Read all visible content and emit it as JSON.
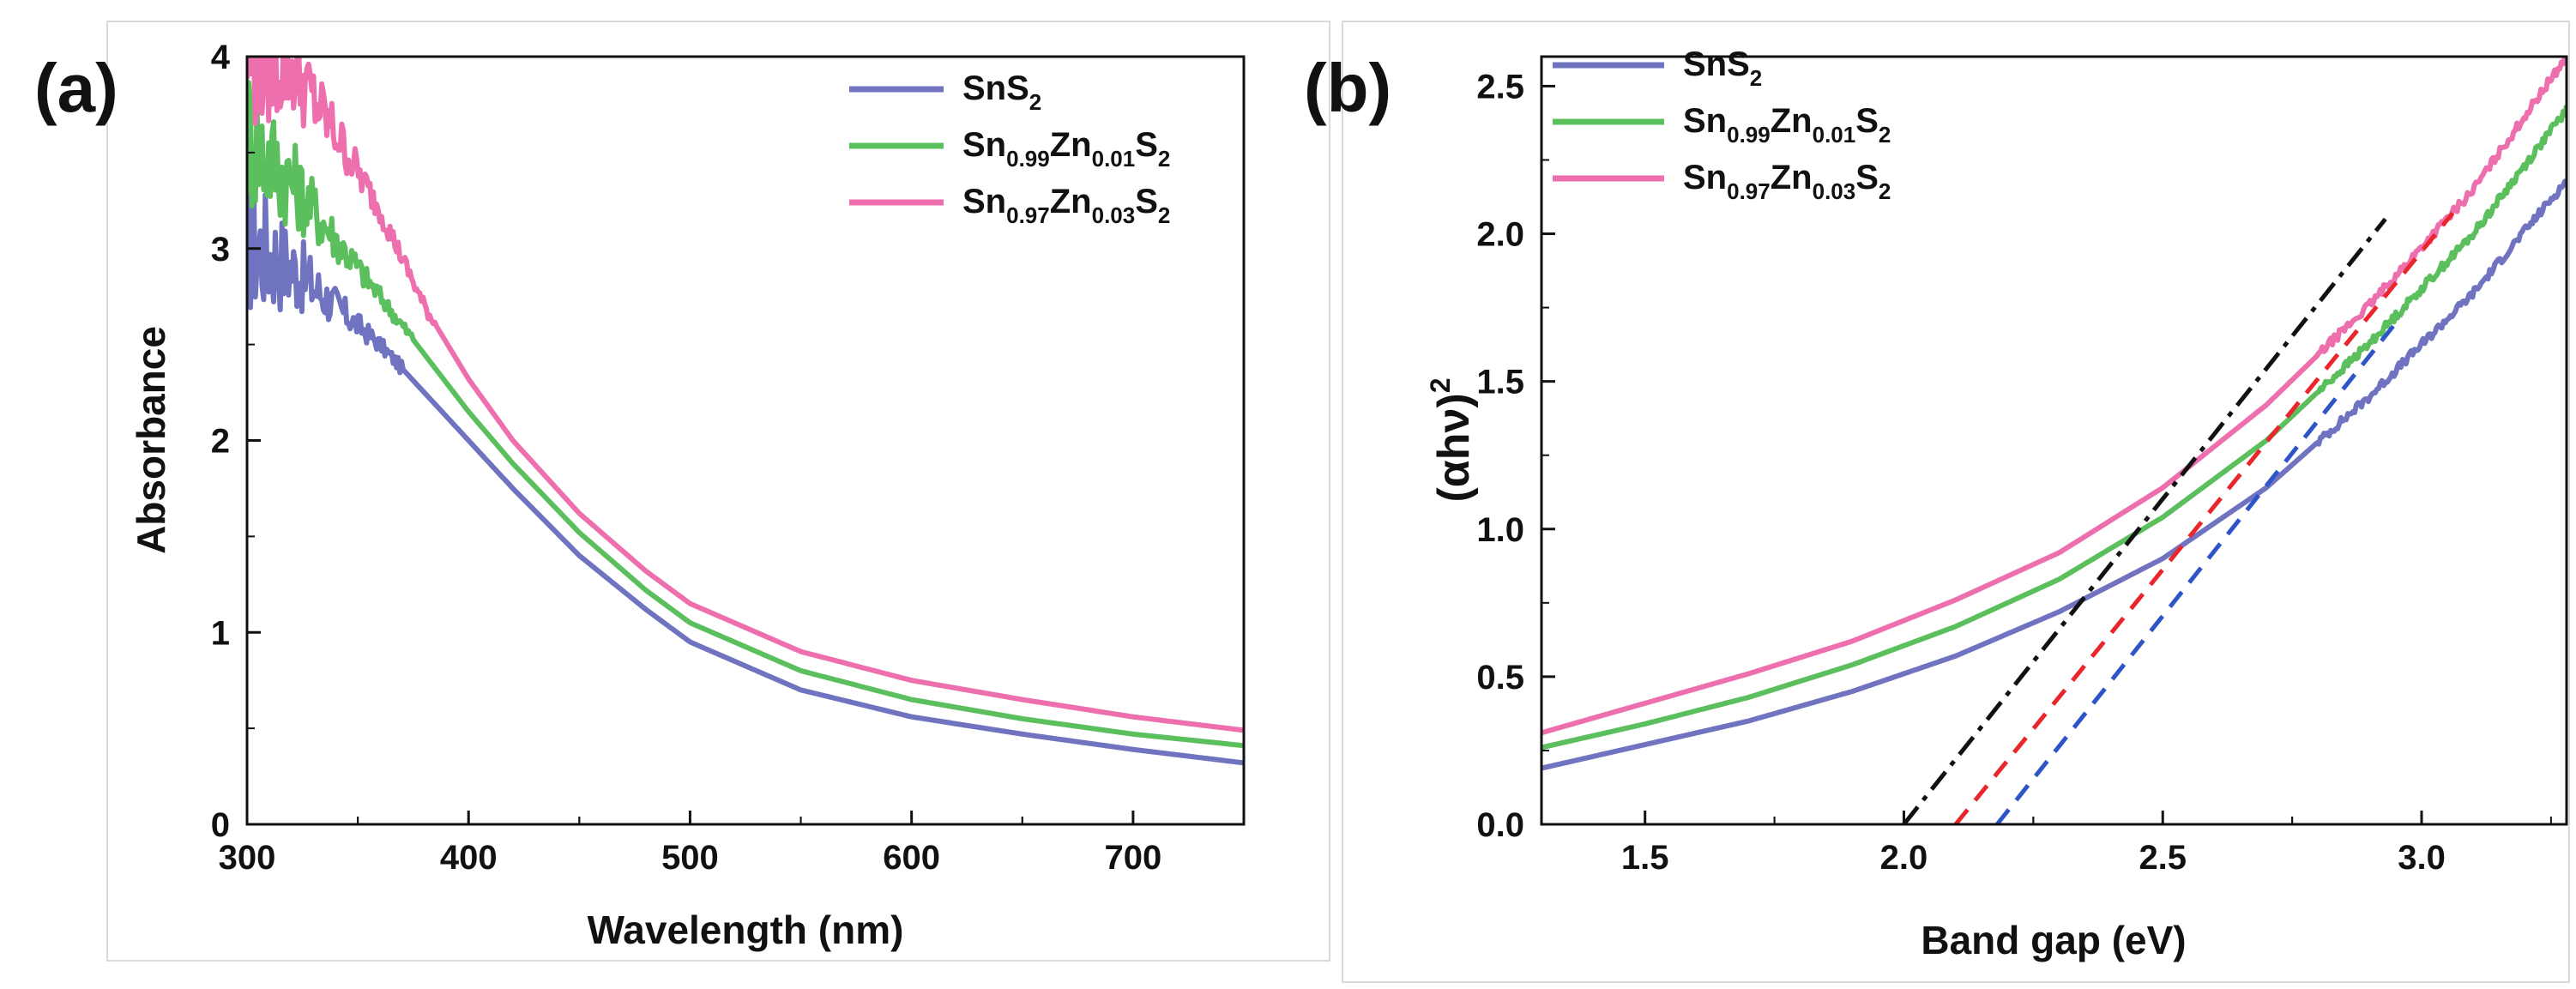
{
  "chart_data": [
    {
      "panel": "(a)",
      "type": "line",
      "title": "",
      "xlabel": "Wavelength (nm)",
      "ylabel": "Absorbance",
      "xlim": [
        300,
        750
      ],
      "ylim": [
        0,
        4
      ],
      "x_ticks": [
        300,
        400,
        500,
        600,
        700
      ],
      "y_ticks": [
        0,
        1,
        2,
        3,
        4
      ],
      "legend_position": "top-right",
      "series": [
        {
          "name": "SnS2",
          "label_parts": [
            [
              "SnS",
              "n"
            ],
            [
              "2",
              "sub"
            ]
          ],
          "color": "#6f73c0",
          "noise_below": 370,
          "x": [
            300,
            320,
            340,
            360,
            380,
            400,
            420,
            450,
            480,
            500,
            550,
            600,
            650,
            700,
            750
          ],
          "y": [
            3.05,
            2.9,
            2.7,
            2.5,
            2.25,
            2.0,
            1.75,
            1.4,
            1.12,
            0.95,
            0.7,
            0.56,
            0.47,
            0.39,
            0.32
          ]
        },
        {
          "name": "Sn0.99Zn0.01S2",
          "label_parts": [
            [
              "Sn",
              "n"
            ],
            [
              "0.99",
              "sub"
            ],
            [
              "Zn",
              "n"
            ],
            [
              "0.01",
              "sub"
            ],
            [
              "S",
              "n"
            ],
            [
              "2",
              "sub"
            ]
          ],
          "color": "#5cbf5e",
          "noise_below": 375,
          "x": [
            300,
            320,
            340,
            360,
            380,
            400,
            420,
            450,
            480,
            500,
            550,
            600,
            650,
            700,
            750
          ],
          "y": [
            3.6,
            3.35,
            3.05,
            2.75,
            2.45,
            2.15,
            1.88,
            1.52,
            1.22,
            1.05,
            0.8,
            0.65,
            0.55,
            0.47,
            0.41
          ]
        },
        {
          "name": "Sn0.97Zn0.03S2",
          "label_parts": [
            [
              "Sn",
              "n"
            ],
            [
              "0.97",
              "sub"
            ],
            [
              "Zn",
              "n"
            ],
            [
              "0.03",
              "sub"
            ],
            [
              "S",
              "n"
            ],
            [
              "2",
              "sub"
            ]
          ],
          "color": "#ee6fae",
          "noise_below": 385,
          "x": [
            300,
            320,
            340,
            360,
            380,
            400,
            420,
            450,
            480,
            500,
            550,
            600,
            650,
            700,
            750
          ],
          "y": [
            4.0,
            3.95,
            3.6,
            3.2,
            2.7,
            2.32,
            2.0,
            1.62,
            1.32,
            1.15,
            0.9,
            0.75,
            0.65,
            0.56,
            0.49
          ]
        }
      ]
    },
    {
      "panel": "(b)",
      "type": "line",
      "title": "",
      "xlabel": "Band gap (eV)",
      "ylabel": "(αhν)",
      "ylabel_superscript": "2",
      "xlim": [
        1.3,
        3.28
      ],
      "ylim": [
        0,
        2.6
      ],
      "x_ticks": [
        "1.5",
        "2.0",
        "2.5",
        "3.0"
      ],
      "y_ticks": [
        "0.0",
        "0.5",
        "1.0",
        "1.5",
        "2.0",
        "2.5"
      ],
      "legend_position": "top-left",
      "series": [
        {
          "name": "SnS2",
          "label_parts": [
            [
              "SnS",
              "n"
            ],
            [
              "2",
              "sub"
            ]
          ],
          "color": "#6f73c0",
          "x": [
            1.3,
            1.5,
            1.7,
            1.9,
            2.1,
            2.3,
            2.5,
            2.7,
            2.9,
            3.1,
            3.28
          ],
          "y": [
            0.19,
            0.27,
            0.35,
            0.45,
            0.57,
            0.72,
            0.9,
            1.14,
            1.45,
            1.8,
            2.18
          ]
        },
        {
          "name": "Sn0.99Zn0.01S2",
          "label_parts": [
            [
              "Sn",
              "n"
            ],
            [
              "0.99",
              "sub"
            ],
            [
              "Zn",
              "n"
            ],
            [
              "0.01",
              "sub"
            ],
            [
              "S",
              "n"
            ],
            [
              "2",
              "sub"
            ]
          ],
          "color": "#5cbf5e",
          "x": [
            1.3,
            1.5,
            1.7,
            1.9,
            2.1,
            2.3,
            2.5,
            2.7,
            2.9,
            3.1,
            3.28
          ],
          "y": [
            0.26,
            0.34,
            0.43,
            0.54,
            0.67,
            0.83,
            1.04,
            1.3,
            1.63,
            2.0,
            2.42
          ]
        },
        {
          "name": "Sn0.97Zn0.03S2",
          "label_parts": [
            [
              "Sn",
              "n"
            ],
            [
              "0.97",
              "sub"
            ],
            [
              "Zn",
              "n"
            ],
            [
              "0.03",
              "sub"
            ],
            [
              "S",
              "n"
            ],
            [
              "2",
              "sub"
            ]
          ],
          "color": "#ee6fae",
          "x": [
            1.3,
            1.5,
            1.7,
            1.9,
            2.1,
            2.3,
            2.5,
            2.7,
            2.9,
            3.1,
            3.28
          ],
          "y": [
            0.31,
            0.41,
            0.51,
            0.62,
            0.76,
            0.92,
            1.14,
            1.42,
            1.76,
            2.15,
            2.6
          ]
        }
      ],
      "fit_lines": [
        {
          "name": "Sn0.97Zn0.03S2 fit",
          "color": "#111111",
          "style": "dash-dot",
          "x": [
            2.0,
            2.93
          ],
          "y": [
            0.0,
            2.05
          ]
        },
        {
          "name": "Sn0.99Zn0.01S2 fit",
          "color": "#e8262b",
          "style": "dashed",
          "x": [
            2.1,
            3.06
          ],
          "y": [
            0.0,
            2.07
          ]
        },
        {
          "name": "SnS2 fit",
          "color": "#2d55c8",
          "style": "dashed",
          "x": [
            2.18,
            2.96
          ],
          "y": [
            0.0,
            1.72
          ]
        }
      ]
    }
  ]
}
